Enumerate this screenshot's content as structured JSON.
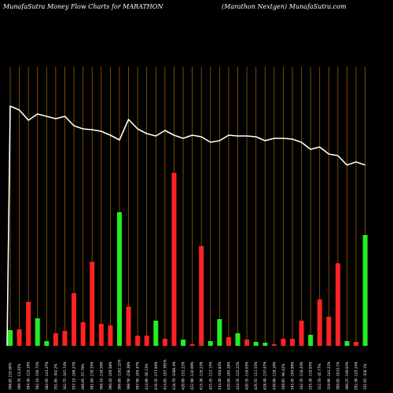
{
  "header": {
    "title_left": "MunafaSutra  Money Flow  Charts for MARATHON",
    "title_right": "(Marathon  Nextgen) MunafaSutra.com"
  },
  "chart_data": {
    "type": "bar",
    "colors": {
      "background": "#000000",
      "up": "#22ee22",
      "down": "#ff2222",
      "grid": "#a05a00",
      "line": "#ffffff"
    },
    "bars": [
      {
        "label": "398.85 216.60%",
        "dir": "up",
        "value": 20
      },
      {
        "label": "399.70 -13.45%",
        "dir": "down",
        "value": 21
      },
      {
        "label": "394.30 -125.16%",
        "dir": "down",
        "value": 56
      },
      {
        "label": "392.10 -150.72%",
        "dir": "up",
        "value": 35
      },
      {
        "label": "382.95 -143.27%",
        "dir": "up",
        "value": 6
      },
      {
        "label": "351.85 -342.2%",
        "dir": "down",
        "value": 16
      },
      {
        "label": "342.75 -107.74%",
        "dir": "down",
        "value": 19
      },
      {
        "label": "357.10 -189.27%",
        "dir": "down",
        "value": 67
      },
      {
        "label": "366.05 -57.79%",
        "dir": "down",
        "value": 30
      },
      {
        "label": "381.60 -170.35%",
        "dir": "down",
        "value": 107
      },
      {
        "label": "368.10 -134.59%",
        "dir": "down",
        "value": 28
      },
      {
        "label": "390.20 -109.58%",
        "dir": "down",
        "value": 26
      },
      {
        "label": "396.00 -1162.22%",
        "dir": "up",
        "value": 170
      },
      {
        "label": "398.50 -238.38%",
        "dir": "down",
        "value": 50
      },
      {
        "label": "397.90 -105.47%",
        "dir": "down",
        "value": 13
      },
      {
        "label": "414.90 -56.13%",
        "dir": "down",
        "value": 13
      },
      {
        "label": "416.35 -177.94%",
        "dir": "up",
        "value": 32
      },
      {
        "label": "414.85 -107.395%",
        "dir": "down",
        "value": 9
      },
      {
        "label": "418.70 -1686.4%",
        "dir": "down",
        "value": 220
      },
      {
        "label": "420.00 -152.22%",
        "dir": "up",
        "value": 8
      },
      {
        "label": "422.90 -134.09%",
        "dir": "down",
        "value": 2
      },
      {
        "label": "415.30 -116.22%",
        "dir": "down",
        "value": 127
      },
      {
        "label": "425.35 -112.15%",
        "dir": "up",
        "value": 6
      },
      {
        "label": "434.40 -104.83%",
        "dir": "up",
        "value": 34
      },
      {
        "label": "420.00 -185.28%",
        "dir": "down",
        "value": 11
      },
      {
        "label": "424.35 -122.22%",
        "dir": "up",
        "value": 16
      },
      {
        "label": "420.35 -118.65%",
        "dir": "down",
        "value": 8
      },
      {
        "label": "426.55 -111.55%",
        "dir": "up",
        "value": 5
      },
      {
        "label": "428.40 -137.47%",
        "dir": "up",
        "value": 4
      },
      {
        "label": "430.90 -118.10%",
        "dir": "down",
        "value": 2
      },
      {
        "label": "349.85 -94.42%",
        "dir": "down",
        "value": 9
      },
      {
        "label": "345.45 -194.99%",
        "dir": "down",
        "value": 9
      },
      {
        "label": "342.35 -118.43%",
        "dir": "down",
        "value": 32
      },
      {
        "label": "335.30 -116.03%",
        "dir": "up",
        "value": 14
      },
      {
        "label": "322.70 -45.77%",
        "dir": "down",
        "value": 59
      },
      {
        "label": "319.90 -143.22%",
        "dir": "down",
        "value": 37
      },
      {
        "label": "309.85 -1015.1%",
        "dir": "down",
        "value": 105
      },
      {
        "label": "300.25 -149.62%",
        "dir": "up",
        "value": 6
      },
      {
        "label": "292.30 -125.24%",
        "dir": "down",
        "value": 5
      },
      {
        "label": "331.65 -318.1%",
        "dir": "up",
        "value": 141
      }
    ],
    "price_line": [
      135,
      140,
      153,
      145,
      148,
      151,
      148,
      160,
      164,
      165,
      167,
      172,
      178,
      152,
      164,
      170,
      173,
      166,
      172,
      176,
      172,
      174,
      181,
      179,
      172,
      173,
      173,
      174,
      179,
      176,
      176,
      177,
      181,
      190,
      187,
      196,
      198,
      210,
      206,
      210,
      190
    ]
  }
}
